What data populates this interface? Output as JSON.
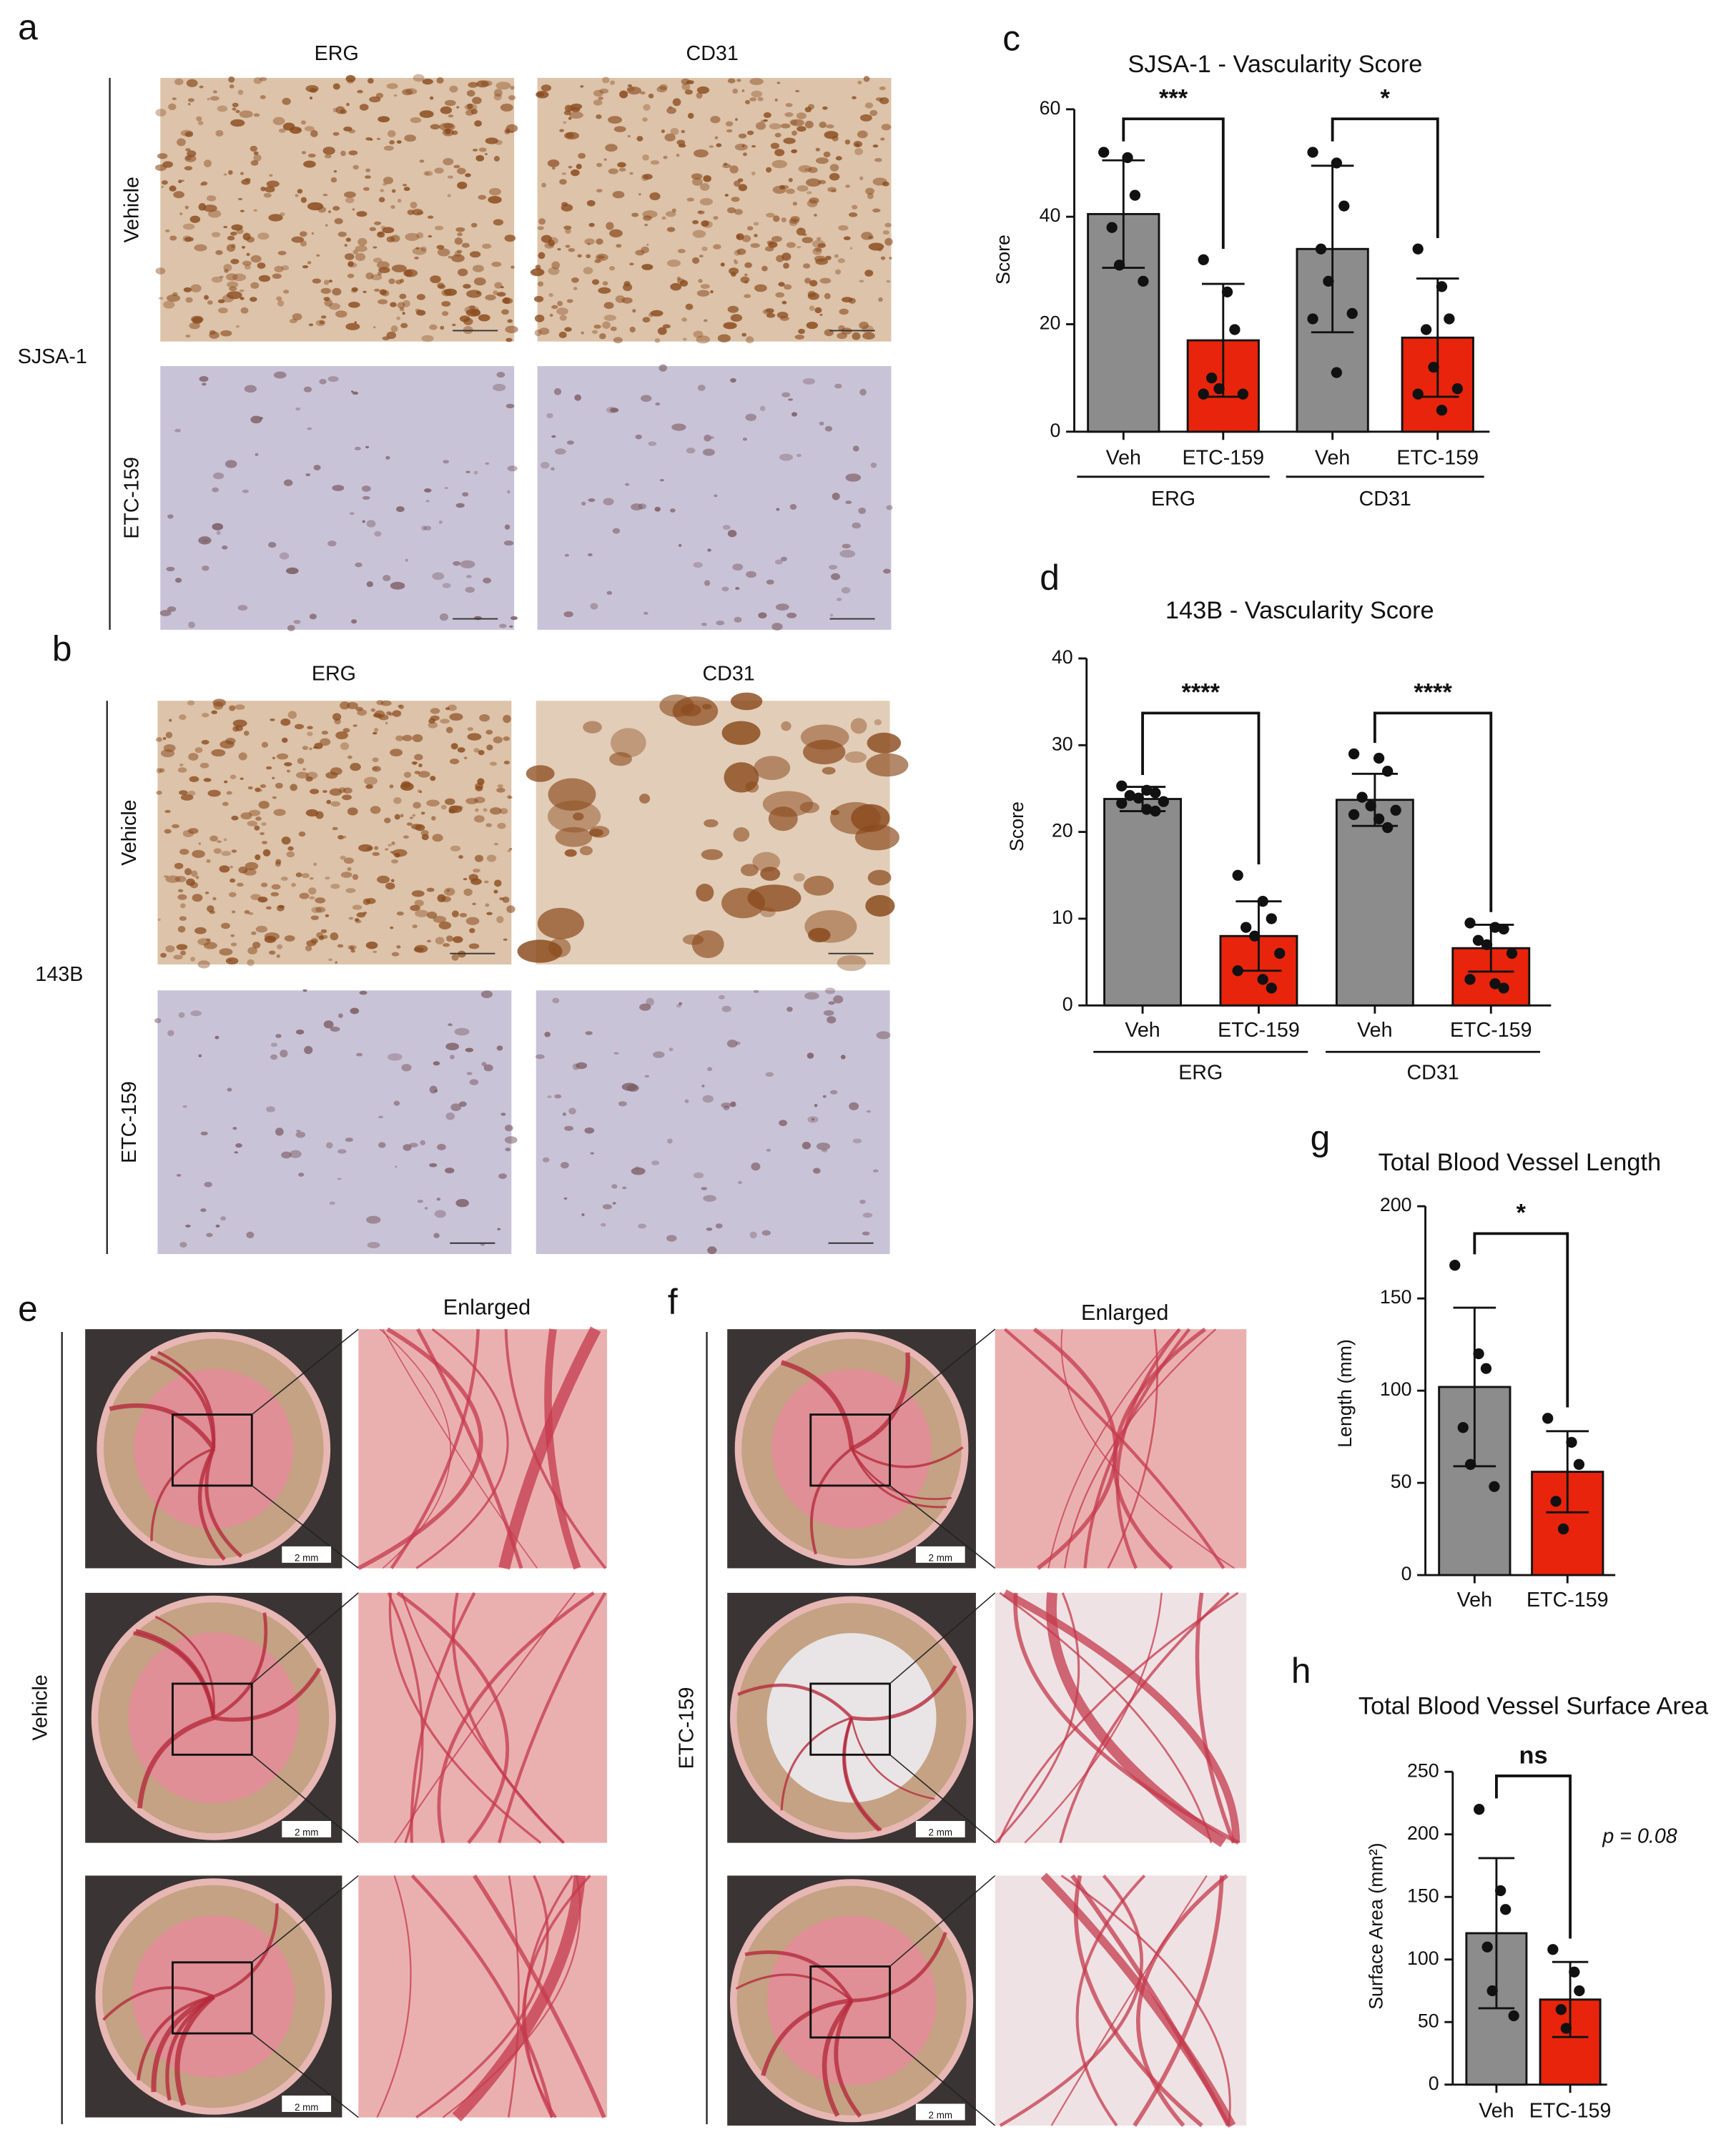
{
  "panels": [
    "a",
    "b",
    "c",
    "d",
    "e",
    "f",
    "g",
    "h"
  ],
  "histology": [
    {
      "cell_line": "SJSA-1",
      "stains": [
        "ERG",
        "CD31"
      ],
      "treatments": [
        "Vehicle",
        "ETC-159"
      ]
    },
    {
      "cell_line": "143B",
      "stains": [
        "ERG",
        "CD31"
      ],
      "treatments": [
        "Vehicle",
        "ETC-159"
      ]
    }
  ],
  "cam": [
    {
      "treatment": "Vehicle",
      "enlarged": "Enlarged",
      "scale_bar": "2 mm"
    },
    {
      "treatment": "ETC-159",
      "enlarged": "Enlarged",
      "scale_bar": "2 mm"
    }
  ],
  "chart_data": [
    {
      "type": "bar",
      "title": "SJSA-1 - Vascularity Score",
      "y_label": "Score",
      "categories": [
        "Veh",
        "ETC-159",
        "Veh",
        "ETC-159"
      ],
      "groups": [
        "ERG",
        "CD31"
      ],
      "values": [
        40.5,
        17,
        34,
        17.5
      ],
      "errors": [
        10,
        10.5,
        15.5,
        11
      ],
      "colors": [
        "#8c8c8c",
        "#e8240c",
        "#8c8c8c",
        "#e8240c"
      ],
      "points": [
        [
          52,
          51,
          44,
          38,
          31,
          28
        ],
        [
          32,
          26,
          19,
          10,
          8,
          7,
          7
        ],
        [
          52,
          50,
          42,
          34,
          28,
          22,
          21,
          11
        ],
        [
          34,
          27,
          21,
          19,
          12,
          8,
          7,
          4
        ]
      ],
      "significance": [
        "***",
        "*"
      ],
      "ylim": [
        0,
        60
      ],
      "yticks": [
        0,
        20,
        40,
        60
      ]
    },
    {
      "type": "bar",
      "title": "143B - Vascularity Score",
      "y_label": "Score",
      "categories": [
        "Veh",
        "ETC-159",
        "Veh",
        "ETC-159"
      ],
      "groups": [
        "ERG",
        "CD31"
      ],
      "values": [
        23.8,
        8,
        23.7,
        6.6
      ],
      "errors": [
        1.4,
        4,
        3,
        2.7
      ],
      "colors": [
        "#8c8c8c",
        "#e8240c",
        "#8c8c8c",
        "#e8240c"
      ],
      "points": [
        [
          25.3,
          24.8,
          24.5,
          24.2,
          23.9,
          23.5,
          23.3,
          22.6,
          22.4
        ],
        [
          15,
          12,
          10,
          9,
          8,
          6,
          4,
          3,
          2
        ],
        [
          29,
          28.5,
          27,
          24,
          23,
          22.5,
          22,
          21.5,
          20.5
        ],
        [
          9.5,
          9,
          8.8,
          7.5,
          7,
          6,
          3,
          2.5,
          2
        ]
      ],
      "significance": [
        "****",
        "****"
      ],
      "ylim": [
        0,
        40
      ],
      "yticks": [
        0,
        10,
        20,
        30,
        40
      ]
    },
    {
      "type": "bar",
      "title": "Total Blood Vessel Length",
      "y_label": "Length (mm)",
      "categories": [
        "Veh",
        "ETC-159"
      ],
      "values": [
        102,
        56
      ],
      "errors": [
        43,
        22
      ],
      "colors": [
        "#8c8c8c",
        "#e8240c"
      ],
      "points": [
        [
          168,
          120,
          112,
          80,
          60,
          48
        ],
        [
          85,
          72,
          60,
          40,
          25
        ]
      ],
      "significance": [
        "*"
      ],
      "ylim": [
        0,
        200
      ],
      "yticks": [
        0,
        50,
        100,
        150,
        200
      ]
    },
    {
      "type": "bar",
      "title": "Total Blood Vessel Surface Area",
      "y_label": "Surface Area (mm²)",
      "categories": [
        "Veh",
        "ETC-159"
      ],
      "values": [
        121,
        68
      ],
      "errors": [
        60,
        30
      ],
      "colors": [
        "#8c8c8c",
        "#e8240c"
      ],
      "points": [
        [
          220,
          155,
          140,
          110,
          75,
          55
        ],
        [
          108,
          90,
          75,
          60,
          45
        ]
      ],
      "significance": [
        "ns"
      ],
      "annotation": "p = 0.08",
      "ylim": [
        0,
        250
      ],
      "yticks": [
        0,
        50,
        100,
        150,
        200,
        250
      ]
    }
  ]
}
